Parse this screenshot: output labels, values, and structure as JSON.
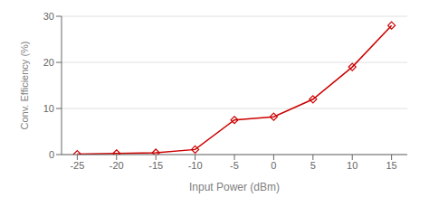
{
  "chart_data": {
    "type": "line",
    "x": [
      -25,
      -20,
      -15,
      -10,
      -5,
      0,
      5,
      10,
      15
    ],
    "values": [
      0.08,
      0.25,
      0.4,
      1.1,
      7.5,
      8.2,
      12.0,
      19.0,
      28.0
    ],
    "xlabel": "Input Power (dBm)",
    "ylabel": "Conv. Efficiency (%)",
    "xlim": [
      -27,
      17
    ],
    "ylim": [
      0,
      30
    ],
    "xticks": [
      -25,
      -20,
      -15,
      -10,
      -5,
      0,
      5,
      10,
      15
    ],
    "yticks": [
      0,
      10,
      20,
      30
    ],
    "color": "#cc0000",
    "marker": "diamond",
    "grid": "y"
  }
}
